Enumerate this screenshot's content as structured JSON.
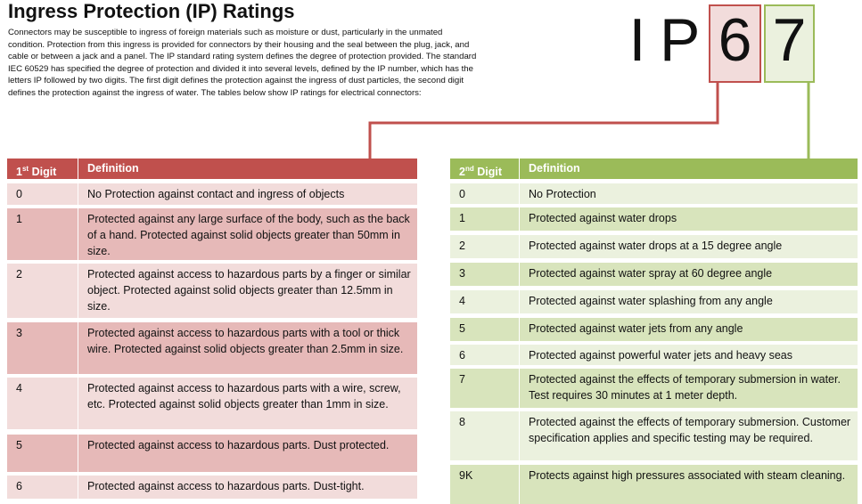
{
  "header": {
    "title": "Ingress Protection (IP) Ratings",
    "body": "Connectors may be susceptible to ingress of foreign materials such as moisture or dust, particularly in the unmated condition. Protection from this ingress is provided for connectors by their housing and the seal between the plug, jack, and cable or between a jack and a panel. The IP standard rating system defines the degree of protection provided. The standard IEC 60529 has specified the degree of protection and divided it into several levels, defined by the IP number, which has the letters IP followed by two digits. The first digit defines the protection against the ingress of dust particles, the second digit defines the protection against the ingress of water. The tables below show IP ratings for electrical connectors:"
  },
  "ip_code": {
    "prefix": [
      "I",
      "P"
    ],
    "first_digit": "6",
    "second_digit": "7"
  },
  "first_table": {
    "header": {
      "number": "1",
      "suffix": "st",
      "label": "Digit",
      "definition": "Definition"
    },
    "rows": [
      [
        "0",
        "No Protection against contact and ingress of objects"
      ],
      [
        "1",
        "Protected against any large surface of the body, such as the back of a hand. Protected against solid objects greater than 50mm in size."
      ],
      [
        "2",
        "Protected against access to hazardous parts by a finger or similar object. Protected against solid objects greater than 12.5mm in size."
      ],
      [
        "3",
        "Protected against access to hazardous parts with a tool or thick wire. Protected against solid objects greater than 2.5mm in size."
      ],
      [
        "4",
        "Protected against access to hazardous parts with a wire, screw, etc. Protected against solid objects greater than 1mm in size."
      ],
      [
        "5",
        "Protected against access to hazardous parts. Dust protected."
      ],
      [
        "6",
        "Protected against access to hazardous parts. Dust-tight."
      ]
    ]
  },
  "second_table": {
    "header": {
      "number": "2",
      "suffix": "nd",
      "label": "Digit",
      "definition": "Definition"
    },
    "rows": [
      [
        "0",
        "No Protection"
      ],
      [
        "1",
        "Protected against water drops"
      ],
      [
        "2",
        "Protected against water drops at a 15 degree angle"
      ],
      [
        "3",
        "Protected against water spray at 60 degree angle"
      ],
      [
        "4",
        "Protected against water splashing from any angle"
      ],
      [
        "5",
        "Protected against water jets from any angle"
      ],
      [
        "6",
        "Protected against powerful water jets and heavy seas"
      ],
      [
        "7",
        "Protected against the effects of temporary submersion in water. Test requires 30 minutes at 1 meter depth."
      ],
      [
        "8",
        "Protected against the effects of temporary submersion. Customer specification applies and specific testing may be required."
      ],
      [
        "9K",
        "Protects against high pressures associated with steam cleaning."
      ]
    ]
  }
}
